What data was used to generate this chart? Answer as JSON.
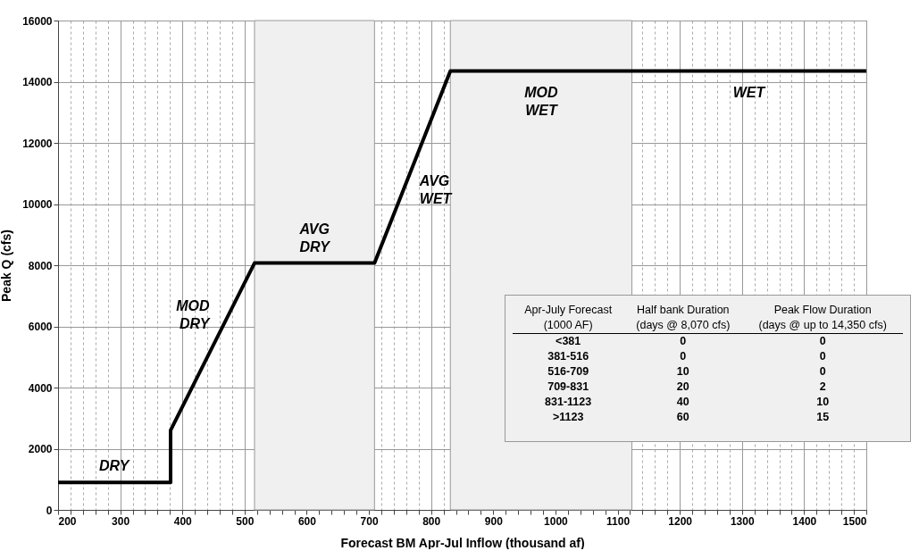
{
  "chart_data": {
    "type": "line",
    "xlabel": "Forecast BM Apr-Jul Inflow (thousand af)",
    "ylabel": "Peak Q (cfs)",
    "series": [
      {
        "color": "#000000",
        "x": [
          200,
          381,
          381,
          516,
          709,
          831,
          1500
        ],
        "values": [
          900,
          900,
          2600,
          8070,
          8070,
          14350,
          14350
        ]
      }
    ],
    "xlim": [
      200,
      1500
    ],
    "ylim": [
      0,
      16000
    ],
    "xticks": [
      200,
      {
        "value": 220,
        "label": null
      },
      {
        "value": 240,
        "label": null
      },
      {
        "value": 260,
        "label": null
      },
      {
        "value": 280,
        "label": null
      },
      300,
      {
        "value": 320,
        "label": null
      },
      {
        "value": 340,
        "label": null
      },
      {
        "value": 360,
        "label": null
      },
      {
        "value": 380,
        "label": null
      },
      400,
      {
        "value": 420,
        "label": null
      },
      {
        "value": 440,
        "label": null
      },
      {
        "value": 460,
        "label": null
      },
      {
        "value": 480,
        "label": null
      },
      500,
      {
        "value": 520,
        "label": null
      },
      {
        "value": 540,
        "label": null
      },
      {
        "value": 560,
        "label": null
      },
      {
        "value": 580,
        "label": null
      },
      600,
      {
        "value": 620,
        "label": null
      },
      {
        "value": 640,
        "label": null
      },
      {
        "value": 660,
        "label": null
      },
      {
        "value": 680,
        "label": null
      },
      700,
      {
        "value": 720,
        "label": null
      },
      {
        "value": 740,
        "label": null
      },
      {
        "value": 760,
        "label": null
      },
      {
        "value": 780,
        "label": null
      },
      800,
      {
        "value": 820,
        "label": null
      },
      {
        "value": 840,
        "label": null
      },
      {
        "value": 860,
        "label": null
      },
      {
        "value": 880,
        "label": null
      },
      900,
      {
        "value": 920,
        "label": null
      },
      {
        "value": 940,
        "label": null
      },
      {
        "value": 960,
        "label": null
      },
      {
        "value": 980,
        "label": null
      },
      1000,
      {
        "value": 1020,
        "label": null
      },
      {
        "value": 1040,
        "label": null
      },
      {
        "value": 1060,
        "label": null
      },
      {
        "value": 1080,
        "label": null
      },
      1100,
      {
        "value": 1120,
        "label": null
      },
      {
        "value": 1140,
        "label": null
      },
      {
        "value": 1160,
        "label": null
      },
      {
        "value": 1180,
        "label": null
      },
      1200,
      {
        "value": 1220,
        "label": null
      },
      {
        "value": 1240,
        "label": null
      },
      {
        "value": 1260,
        "label": null
      },
      {
        "value": 1280,
        "label": null
      },
      1300,
      {
        "value": 1320,
        "label": null
      },
      {
        "value": 1340,
        "label": null
      },
      {
        "value": 1360,
        "label": null
      },
      {
        "value": 1380,
        "label": null
      },
      1400,
      {
        "value": 1420,
        "label": null
      },
      {
        "value": 1440,
        "label": null
      },
      {
        "value": 1460,
        "label": null
      },
      {
        "value": 1480,
        "label": null
      },
      1500
    ],
    "yticks": [
      0,
      2000,
      4000,
      6000,
      8000,
      10000,
      12000,
      14000,
      16000
    ],
    "grid": true,
    "line_style": "solid",
    "marker": "none",
    "bands": [
      {
        "axis": "x",
        "from": 516,
        "to": 709,
        "color": "#f0f0f0",
        "label": "AVG DRY"
      },
      {
        "axis": "x",
        "from": 831,
        "to": 1123,
        "color": "#f0f0f0",
        "label": "MOD WET"
      }
    ],
    "annotations": [
      {
        "text": "DRY",
        "x": 290,
        "y": 900
      },
      {
        "text": "MOD DRY",
        "x": 455,
        "y": 5600
      },
      {
        "text": "AVG WET",
        "x": 770,
        "y": 11210
      },
      {
        "text": "WET",
        "x": 1311,
        "y": 14350
      },
      "Apr-July Forecast",
      "Half bank Duration",
      "Peak Flow  Duration",
      "(1000 AF)",
      "(days @ 8,070 cfs)",
      "(days @ up to 14,350 cfs)",
      "<381",
      "0",
      "0",
      "381-516",
      "0",
      "0",
      "516-709",
      "10",
      "0",
      "709-831",
      "20",
      "2",
      "831-1123",
      "40",
      "10",
      ">1123",
      "60",
      "15"
    ]
  }
}
